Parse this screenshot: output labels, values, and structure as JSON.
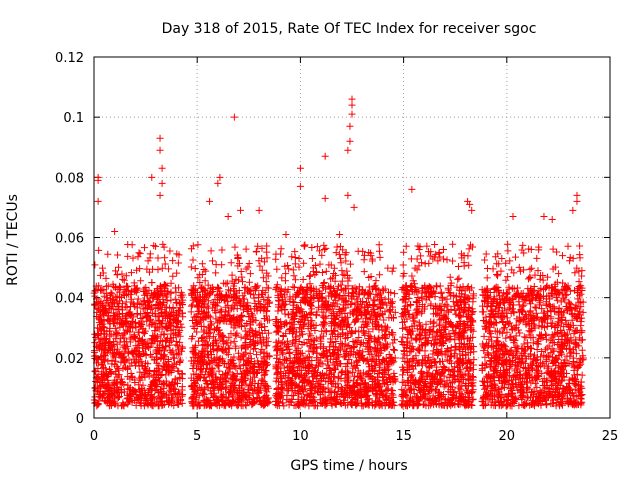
{
  "chart_data": {
    "type": "scatter",
    "title": "Day 318 of 2015, Rate Of TEC Index for receiver sgoc",
    "xlabel": "GPS time / hours",
    "ylabel": "ROTI / TECUs",
    "xlim": [
      0,
      25
    ],
    "ylim": [
      0,
      0.12
    ],
    "xticks": [
      "0",
      "5",
      "10",
      "15",
      "20",
      "25"
    ],
    "yticks": [
      "0",
      "0.02",
      "0.04",
      "0.06",
      "0.08",
      "0.1",
      "0.12"
    ],
    "grid": true,
    "marker": "+",
    "color": "#ff0000",
    "segments": [
      {
        "x_start": 0.0,
        "x_end": 4.3
      },
      {
        "x_start": 4.7,
        "x_end": 8.5
      },
      {
        "x_start": 8.8,
        "x_end": 14.6
      },
      {
        "x_start": 14.9,
        "x_end": 18.4
      },
      {
        "x_start": 18.8,
        "x_end": 23.7
      }
    ],
    "points": [
      {
        "x": 0.2,
        "y": 0.08
      },
      {
        "x": 0.2,
        "y": 0.079
      },
      {
        "x": 0.2,
        "y": 0.072
      },
      {
        "x": 1.0,
        "y": 0.062
      },
      {
        "x": 2.8,
        "y": 0.08
      },
      {
        "x": 3.2,
        "y": 0.093
      },
      {
        "x": 3.2,
        "y": 0.089
      },
      {
        "x": 3.3,
        "y": 0.083
      },
      {
        "x": 3.3,
        "y": 0.078
      },
      {
        "x": 3.2,
        "y": 0.074
      },
      {
        "x": 6.0,
        "y": 0.078
      },
      {
        "x": 6.1,
        "y": 0.08
      },
      {
        "x": 5.6,
        "y": 0.072
      },
      {
        "x": 6.5,
        "y": 0.067
      },
      {
        "x": 6.8,
        "y": 0.1
      },
      {
        "x": 7.1,
        "y": 0.069
      },
      {
        "x": 8.0,
        "y": 0.069
      },
      {
        "x": 10.0,
        "y": 0.083
      },
      {
        "x": 10.0,
        "y": 0.077
      },
      {
        "x": 11.2,
        "y": 0.087
      },
      {
        "x": 11.2,
        "y": 0.073
      },
      {
        "x": 12.3,
        "y": 0.089
      },
      {
        "x": 12.5,
        "y": 0.106
      },
      {
        "x": 12.5,
        "y": 0.104
      },
      {
        "x": 12.5,
        "y": 0.101
      },
      {
        "x": 12.4,
        "y": 0.097
      },
      {
        "x": 12.4,
        "y": 0.092
      },
      {
        "x": 12.3,
        "y": 0.074
      },
      {
        "x": 12.6,
        "y": 0.07
      },
      {
        "x": 15.4,
        "y": 0.076
      },
      {
        "x": 18.1,
        "y": 0.072
      },
      {
        "x": 18.2,
        "y": 0.071
      },
      {
        "x": 23.4,
        "y": 0.074
      },
      {
        "x": 23.4,
        "y": 0.072
      },
      {
        "x": 23.2,
        "y": 0.069
      },
      {
        "x": 21.8,
        "y": 0.067
      },
      {
        "x": 20.3,
        "y": 0.067
      },
      {
        "x": 22.2,
        "y": 0.066
      },
      {
        "x": 9.3,
        "y": 0.061
      },
      {
        "x": 11.9,
        "y": 0.061
      },
      {
        "x": 18.3,
        "y": 0.069
      }
    ]
  }
}
